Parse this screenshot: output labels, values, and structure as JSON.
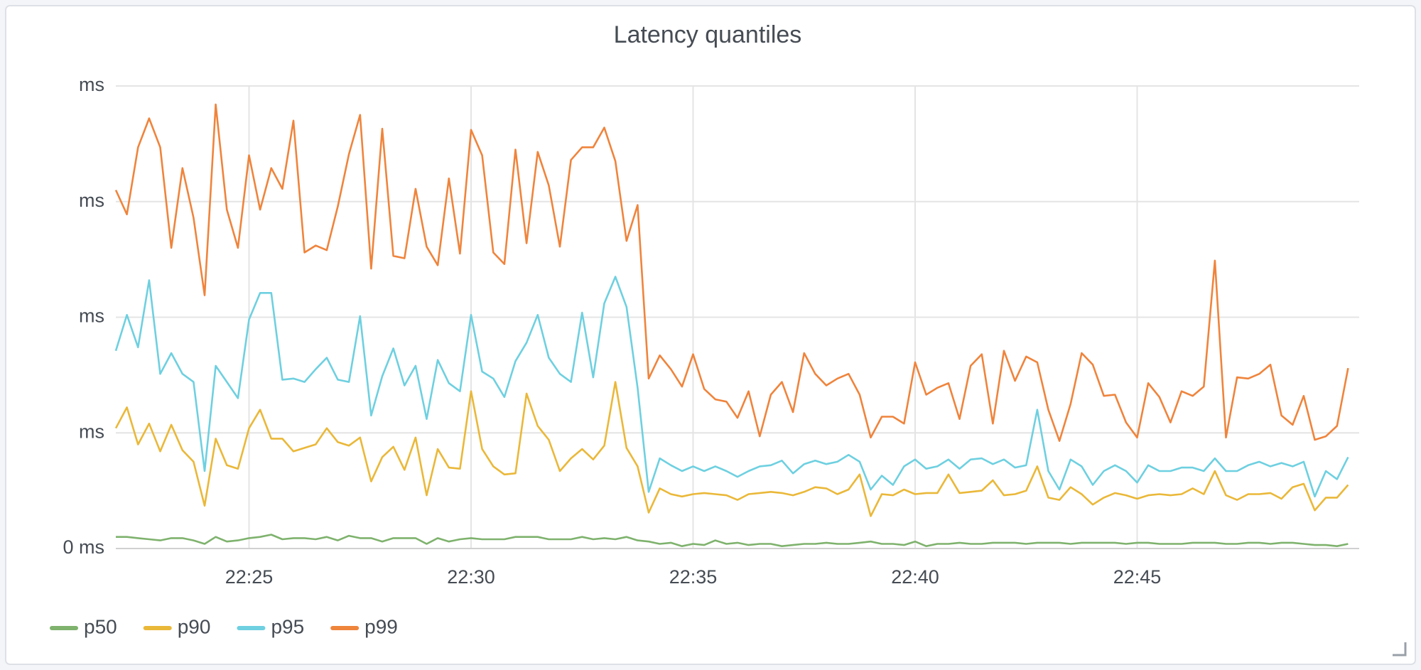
{
  "chart_data": {
    "type": "line",
    "title": "Latency quantiles",
    "x": [
      1342,
      1342.25,
      1342.5,
      1342.75,
      1343,
      1343.25,
      1343.5,
      1343.75,
      1344,
      1344.25,
      1344.5,
      1344.75,
      1345,
      1345.25,
      1345.5,
      1345.75,
      1346,
      1346.25,
      1346.5,
      1346.75,
      1347,
      1347.25,
      1347.5,
      1347.75,
      1348,
      1348.25,
      1348.5,
      1348.75,
      1349,
      1349.25,
      1349.5,
      1349.75,
      1350,
      1350.25,
      1350.5,
      1350.75,
      1351,
      1351.25,
      1351.5,
      1351.75,
      1352,
      1352.25,
      1352.5,
      1352.75,
      1353,
      1353.25,
      1353.5,
      1353.75,
      1354,
      1354.25,
      1354.5,
      1354.75,
      1355,
      1355.25,
      1355.5,
      1355.75,
      1356,
      1356.25,
      1356.5,
      1356.75,
      1357,
      1357.25,
      1357.5,
      1357.75,
      1358,
      1358.25,
      1358.5,
      1358.75,
      1359,
      1359.25,
      1359.5,
      1359.75,
      1360,
      1360.25,
      1360.5,
      1360.75,
      1361,
      1361.25,
      1361.5,
      1361.75,
      1362,
      1362.25,
      1362.5,
      1362.75,
      1363,
      1363.25,
      1363.5,
      1363.75,
      1364,
      1364.25,
      1364.5,
      1364.75,
      1365,
      1365.25,
      1365.5,
      1365.75,
      1366,
      1366.25,
      1366.5,
      1366.75,
      1367,
      1367.25,
      1367.5,
      1367.75,
      1368,
      1368.25,
      1368.5,
      1368.75,
      1369,
      1369.25,
      1369.5,
      1369.75
    ],
    "series": [
      {
        "name": "p50",
        "color": "#7eb26d",
        "values": [
          0.1,
          0.1,
          0.09,
          0.08,
          0.07,
          0.09,
          0.09,
          0.07,
          0.04,
          0.1,
          0.06,
          0.07,
          0.09,
          0.1,
          0.12,
          0.08,
          0.09,
          0.09,
          0.08,
          0.1,
          0.07,
          0.11,
          0.09,
          0.09,
          0.06,
          0.09,
          0.09,
          0.09,
          0.04,
          0.09,
          0.06,
          0.08,
          0.09,
          0.08,
          0.08,
          0.08,
          0.1,
          0.1,
          0.1,
          0.08,
          0.08,
          0.08,
          0.1,
          0.08,
          0.09,
          0.08,
          0.1,
          0.07,
          0.06,
          0.04,
          0.05,
          0.02,
          0.04,
          0.03,
          0.07,
          0.04,
          0.05,
          0.03,
          0.04,
          0.04,
          0.02,
          0.03,
          0.04,
          0.04,
          0.05,
          0.04,
          0.04,
          0.05,
          0.06,
          0.04,
          0.04,
          0.03,
          0.06,
          0.02,
          0.04,
          0.04,
          0.05,
          0.04,
          0.04,
          0.05,
          0.05,
          0.05,
          0.04,
          0.05,
          0.05,
          0.05,
          0.04,
          0.05,
          0.05,
          0.05,
          0.05,
          0.04,
          0.05,
          0.05,
          0.04,
          0.04,
          0.04,
          0.05,
          0.05,
          0.05,
          0.04,
          0.04,
          0.05,
          0.05,
          0.04,
          0.05,
          0.05,
          0.04,
          0.03,
          0.03,
          0.02,
          0.04
        ]
      },
      {
        "name": "p90",
        "color": "#eab839",
        "values": [
          1.04,
          1.22,
          0.9,
          1.08,
          0.84,
          1.07,
          0.85,
          0.75,
          0.37,
          0.95,
          0.72,
          0.69,
          1.04,
          1.2,
          0.95,
          0.95,
          0.84,
          0.87,
          0.9,
          1.04,
          0.92,
          0.89,
          0.96,
          0.58,
          0.79,
          0.88,
          0.68,
          0.96,
          0.46,
          0.86,
          0.7,
          0.69,
          1.36,
          0.86,
          0.71,
          0.64,
          0.65,
          1.34,
          1.06,
          0.94,
          0.67,
          0.78,
          0.86,
          0.77,
          0.89,
          1.44,
          0.87,
          0.71,
          0.31,
          0.52,
          0.47,
          0.45,
          0.47,
          0.48,
          0.47,
          0.46,
          0.42,
          0.47,
          0.48,
          0.49,
          0.48,
          0.46,
          0.49,
          0.53,
          0.52,
          0.47,
          0.51,
          0.64,
          0.28,
          0.47,
          0.46,
          0.51,
          0.47,
          0.48,
          0.48,
          0.64,
          0.48,
          0.49,
          0.5,
          0.59,
          0.46,
          0.47,
          0.5,
          0.71,
          0.44,
          0.42,
          0.53,
          0.47,
          0.38,
          0.44,
          0.48,
          0.46,
          0.43,
          0.46,
          0.47,
          0.46,
          0.47,
          0.52,
          0.47,
          0.67,
          0.46,
          0.42,
          0.47,
          0.47,
          0.48,
          0.43,
          0.53,
          0.56,
          0.33,
          0.44,
          0.44,
          0.55
        ]
      },
      {
        "name": "p95",
        "color": "#6ed0e0",
        "values": [
          1.71,
          2.02,
          1.74,
          2.32,
          1.51,
          1.69,
          1.51,
          1.44,
          0.67,
          1.58,
          1.44,
          1.3,
          1.98,
          2.21,
          2.21,
          1.46,
          1.47,
          1.44,
          1.55,
          1.65,
          1.46,
          1.44,
          2.01,
          1.15,
          1.49,
          1.73,
          1.41,
          1.58,
          1.12,
          1.63,
          1.43,
          1.36,
          2.02,
          1.53,
          1.47,
          1.31,
          1.62,
          1.78,
          2.02,
          1.65,
          1.51,
          1.44,
          2.04,
          1.48,
          2.12,
          2.35,
          2.09,
          1.39,
          0.49,
          0.78,
          0.72,
          0.67,
          0.71,
          0.67,
          0.71,
          0.67,
          0.62,
          0.67,
          0.71,
          0.72,
          0.76,
          0.65,
          0.73,
          0.76,
          0.73,
          0.75,
          0.81,
          0.75,
          0.51,
          0.63,
          0.55,
          0.71,
          0.77,
          0.69,
          0.71,
          0.77,
          0.69,
          0.77,
          0.78,
          0.73,
          0.77,
          0.7,
          0.72,
          1.2,
          0.67,
          0.51,
          0.77,
          0.71,
          0.55,
          0.67,
          0.72,
          0.67,
          0.57,
          0.72,
          0.67,
          0.67,
          0.7,
          0.7,
          0.67,
          0.78,
          0.67,
          0.67,
          0.72,
          0.75,
          0.71,
          0.74,
          0.71,
          0.75,
          0.45,
          0.67,
          0.6,
          0.79
        ]
      },
      {
        "name": "p99",
        "color": "#ef843c",
        "values": [
          3.1,
          2.89,
          3.47,
          3.72,
          3.47,
          2.6,
          3.29,
          2.86,
          2.19,
          3.84,
          2.93,
          2.6,
          3.4,
          2.93,
          3.29,
          3.11,
          3.7,
          2.56,
          2.62,
          2.58,
          2.96,
          3.41,
          3.75,
          2.42,
          3.63,
          2.53,
          2.51,
          3.11,
          2.61,
          2.45,
          3.2,
          2.55,
          3.62,
          3.4,
          2.56,
          2.46,
          3.45,
          2.64,
          3.43,
          3.14,
          2.61,
          3.36,
          3.47,
          3.47,
          3.64,
          3.35,
          2.66,
          2.97,
          1.47,
          1.67,
          1.55,
          1.4,
          1.68,
          1.38,
          1.29,
          1.27,
          1.13,
          1.36,
          0.97,
          1.33,
          1.44,
          1.18,
          1.69,
          1.51,
          1.41,
          1.47,
          1.51,
          1.33,
          0.96,
          1.14,
          1.14,
          1.08,
          1.61,
          1.33,
          1.39,
          1.43,
          1.12,
          1.58,
          1.68,
          1.08,
          1.71,
          1.45,
          1.66,
          1.61,
          1.2,
          0.93,
          1.25,
          1.69,
          1.59,
          1.32,
          1.33,
          1.09,
          0.96,
          1.43,
          1.31,
          1.09,
          1.36,
          1.32,
          1.4,
          2.49,
          0.96,
          1.48,
          1.47,
          1.51,
          1.59,
          1.15,
          1.07,
          1.32,
          0.94,
          0.97,
          1.06,
          1.56
        ]
      }
    ],
    "xlim": [
      1342,
      1370
    ],
    "xticks": [
      {
        "value": 1345,
        "label": "22:25"
      },
      {
        "value": 1350,
        "label": "22:30"
      },
      {
        "value": 1355,
        "label": "22:35"
      },
      {
        "value": 1360,
        "label": "22:40"
      },
      {
        "value": 1365,
        "label": "22:45"
      }
    ],
    "ylim": [
      0,
      4
    ],
    "yticks": [
      {
        "value": 0,
        "label": "0 ms"
      },
      {
        "value": 1,
        "label": "ms"
      },
      {
        "value": 2,
        "label": "ms"
      },
      {
        "value": 3,
        "label": "ms"
      },
      {
        "value": 4,
        "label": "ms"
      }
    ],
    "grid": true,
    "legend": "bottom"
  }
}
